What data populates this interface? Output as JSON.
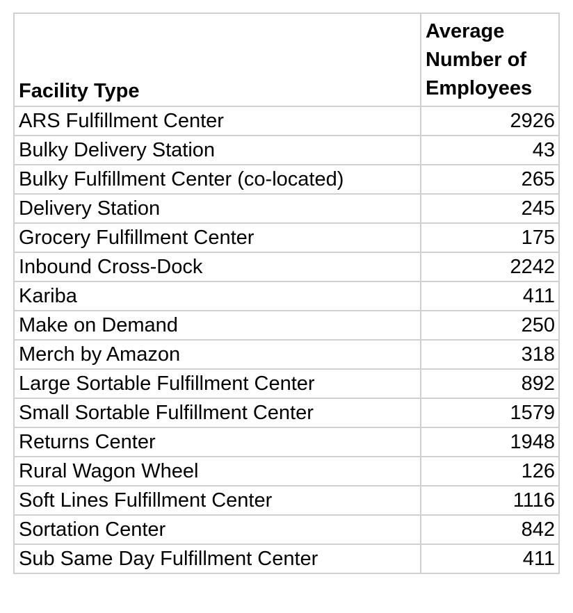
{
  "table": {
    "headers": [
      "Facility Type",
      "Average Number of Employees"
    ],
    "rows": [
      [
        "ARS Fulfillment Center",
        "2926"
      ],
      [
        "Bulky Delivery Station",
        "43"
      ],
      [
        "Bulky Fulfillment Center (co-located)",
        "265"
      ],
      [
        "Delivery Station",
        "245"
      ],
      [
        "Grocery Fulfillment Center",
        "175"
      ],
      [
        "Inbound Cross-Dock",
        "2242"
      ],
      [
        "Kariba",
        "411"
      ],
      [
        "Make on Demand",
        "250"
      ],
      [
        "Merch by Amazon",
        "318"
      ],
      [
        "Large Sortable Fulfillment Center",
        "892"
      ],
      [
        "Small Sortable Fulfillment Center",
        "1579"
      ],
      [
        "Returns Center",
        "1948"
      ],
      [
        "Rural Wagon Wheel",
        "126"
      ],
      [
        "Soft Lines Fulfillment Center",
        "1116"
      ],
      [
        "Sortation Center",
        "842"
      ],
      [
        "Sub Same Day Fulfillment Center",
        "411"
      ]
    ]
  }
}
